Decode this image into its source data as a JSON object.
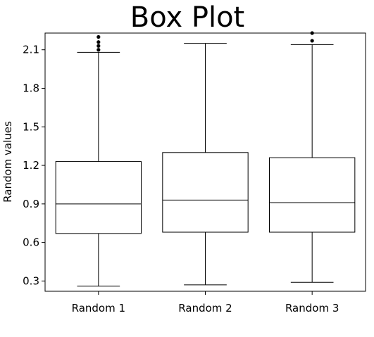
{
  "chart_data": {
    "type": "box",
    "title": "Box Plot",
    "xlabel": "",
    "ylabel": "Random values",
    "ylim": [
      0.22,
      2.23
    ],
    "yticks": [
      0.3,
      0.6,
      0.9,
      1.2,
      1.5,
      1.8,
      2.1
    ],
    "ytick_labels": [
      "0.3",
      "0.6",
      "0.9",
      "1.2",
      "1.5",
      "1.8",
      "2.1"
    ],
    "grid": false,
    "legend": "none",
    "categories": [
      "Random 1",
      "Random 2",
      "Random 3"
    ],
    "boxes": [
      {
        "category": "Random 1",
        "whisker_low": 0.26,
        "q1": 0.67,
        "median": 0.9,
        "q3": 1.23,
        "whisker_high": 2.08,
        "outliers": [
          2.1,
          2.13,
          2.16,
          2.2
        ]
      },
      {
        "category": "Random 2",
        "whisker_low": 0.27,
        "q1": 0.68,
        "median": 0.93,
        "q3": 1.3,
        "whisker_high": 2.15,
        "outliers": []
      },
      {
        "category": "Random 3",
        "whisker_low": 0.29,
        "q1": 0.68,
        "median": 0.91,
        "q3": 1.26,
        "whisker_high": 2.14,
        "outliers": [
          2.17,
          2.23
        ]
      }
    ]
  }
}
